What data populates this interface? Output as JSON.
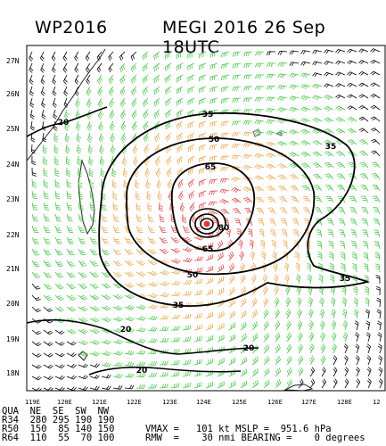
{
  "header": {
    "left": "WP2016",
    "right": "MEGI 2016 26 Sep 18UTC"
  },
  "map": {
    "lat_labels": [
      "27N",
      "26N",
      "25N",
      "24N",
      "23N",
      "22N",
      "21N",
      "20N",
      "19N",
      "18N"
    ],
    "lon_labels": [
      "119E",
      "120E",
      "121E",
      "122E",
      "123E",
      "124E",
      "125E",
      "126E",
      "127E",
      "128E",
      "12"
    ],
    "contour_labels": [
      "35",
      "50",
      "65",
      "80",
      "20"
    ],
    "wind_colors": {
      "ge_64kt": "#ee4444",
      "50_64kt": "#f0a848",
      "34_50kt": "#44cc44",
      "lt_34kt": "#000000"
    }
  },
  "info": {
    "header_row": "QUA  NE  SE  SW  NW",
    "r34": "R34  280 295 190 190",
    "r50": "R50  150  85 140 150",
    "r64": "R64  110  55  70 100",
    "vmax": "VMAX =   101 kt MSLP =  951.6 hPa",
    "rmw": "RMW  =    30 nmi BEARING =    0 degrees"
  }
}
